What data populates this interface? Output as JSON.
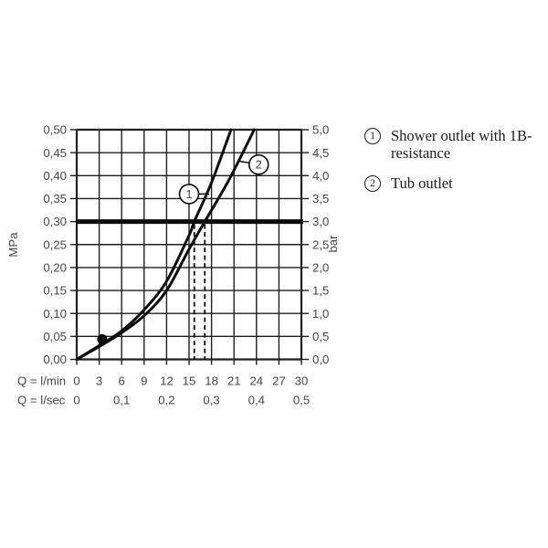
{
  "page": {
    "background": "#ffffff"
  },
  "legend": {
    "items": [
      {
        "number": "1",
        "label": "Shower outlet with 1B-resistance"
      },
      {
        "number": "2",
        "label": "Tub outlet"
      }
    ]
  },
  "chart_data": {
    "type": "line",
    "title": "",
    "x_axis": {
      "label_lmin": "Q = l/min",
      "label_lsec": "Q = l/sec",
      "range_lmin": [
        0,
        30
      ],
      "lmin_ticks": [
        {
          "label": "0",
          "q": 0
        },
        {
          "label": "3",
          "q": 3
        },
        {
          "label": "6",
          "q": 6
        },
        {
          "label": "9",
          "q": 9
        },
        {
          "label": "12",
          "q": 12
        },
        {
          "label": "15",
          "q": 15
        },
        {
          "label": "18",
          "q": 18
        },
        {
          "label": "21",
          "q": 21
        },
        {
          "label": "24",
          "q": 24
        },
        {
          "label": "27",
          "q": 27
        },
        {
          "label": "30",
          "q": 30
        }
      ],
      "lsec_ticks": [
        {
          "label": "0",
          "q": 0
        },
        {
          "label": "0,1",
          "q": 6
        },
        {
          "label": "0,2",
          "q": 12
        },
        {
          "label": "0,3",
          "q": 18
        },
        {
          "label": "0,4",
          "q": 24
        },
        {
          "label": "0,5",
          "q": 30
        }
      ]
    },
    "y_left": {
      "label": "MPa",
      "range": [
        0,
        0.5
      ],
      "ticks": [
        "0,00",
        "0,05",
        "0,10",
        "0,15",
        "0,20",
        "0,25",
        "0,30",
        "0,35",
        "0,40",
        "0,45",
        "0,50"
      ]
    },
    "y_right": {
      "label": "bar",
      "range": [
        0,
        5
      ],
      "ticks": [
        "0,0",
        "0,5",
        "1,0",
        "1,5",
        "2,0",
        "2,5",
        "3,0",
        "3,5",
        "4,0",
        "4,5",
        "5,0"
      ]
    },
    "series": [
      {
        "id": "1",
        "name": "Shower outlet with 1B-resistance",
        "points": [
          [
            0,
            0
          ],
          [
            3,
            0.03
          ],
          [
            6,
            0.062
          ],
          [
            9,
            0.108
          ],
          [
            12,
            0.17
          ],
          [
            15,
            0.27
          ],
          [
            15.7,
            0.3
          ],
          [
            18,
            0.385
          ],
          [
            20.6,
            0.5
          ]
        ]
      },
      {
        "id": "2",
        "name": "Tub outlet",
        "points": [
          [
            0,
            0
          ],
          [
            3,
            0.028
          ],
          [
            6,
            0.058
          ],
          [
            9,
            0.095
          ],
          [
            12,
            0.15
          ],
          [
            15,
            0.24
          ],
          [
            17.1,
            0.3
          ],
          [
            20.3,
            0.39
          ],
          [
            23.7,
            0.5
          ]
        ]
      }
    ],
    "reference_line": {
      "p_mpa": 0.3,
      "bar": 3.0
    },
    "dashed_lines_q": [
      15.7,
      17.1
    ],
    "marker_dot": {
      "q": 3.4,
      "p": 0.044
    },
    "curve_labels": [
      {
        "text": "1",
        "cx_q": 15.0,
        "cy_p": 0.36,
        "attach_q": 17.7,
        "attach_p": 0.36
      },
      {
        "text": "2",
        "cx_q": 24.3,
        "cy_p": 0.424,
        "attach_q": 21.6,
        "attach_p": 0.432
      }
    ],
    "grid": true,
    "legend_position": "right-outside"
  },
  "colors": {
    "curve": "#0d0d0d",
    "grid": "#1f1f1f",
    "reference_line": "#0a0a0a",
    "axis_text": "#474747",
    "legend_text": "#1c1c1c",
    "background": "#ffffff"
  }
}
